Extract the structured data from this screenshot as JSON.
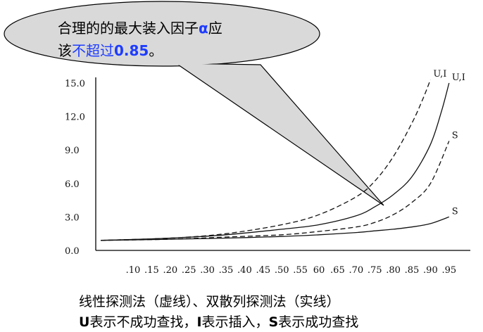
{
  "callout": {
    "line1_text": "合理的的最大装入因子",
    "line1_alpha": "α",
    "line1_tail": "应",
    "line2_prefix": "该",
    "line2_blue": "不超过",
    "line2_value": "0.85",
    "line2_end": "。"
  },
  "caption": {
    "line1": "线性探测法（虚线）、双散列探测法（实线）",
    "line2_parts": [
      {
        "text": "U",
        "bold": true
      },
      {
        "text": "表示不成功查找，",
        "bold": false
      },
      {
        "text": "I",
        "bold": true
      },
      {
        "text": "表示插入，",
        "bold": false
      },
      {
        "text": "S",
        "bold": true
      },
      {
        "text": "表示成功查找",
        "bold": false
      }
    ]
  },
  "chart_data": {
    "type": "line",
    "title": "",
    "xlabel": "",
    "ylabel": "",
    "xlim": [
      0.05,
      0.95
    ],
    "ylim": [
      0,
      15
    ],
    "y_ticks": [
      "0.0",
      "3.0",
      "6.0",
      "9.0",
      "12.0",
      "15.0"
    ],
    "x_ticks": [
      ".10",
      ".15",
      ".20",
      ".25",
      ".30",
      ".35",
      ".40",
      ".45",
      ".50",
      ".55",
      "60",
      ".65",
      ".70",
      ".75",
      ".80",
      ".85",
      ".90",
      ".95"
    ],
    "series": [
      {
        "name": "U,I",
        "style": "dashed",
        "x": [
          0.05,
          0.2,
          0.35,
          0.5,
          0.6,
          0.7,
          0.75,
          0.8,
          0.85,
          0.88,
          0.9
        ],
        "y": [
          0.9,
          1.1,
          1.5,
          2.3,
          3.2,
          4.8,
          6.2,
          8.4,
          11.4,
          13.6,
          15.3
        ]
      },
      {
        "name": "U,I",
        "style": "solid",
        "x": [
          0.05,
          0.2,
          0.35,
          0.5,
          0.6,
          0.7,
          0.75,
          0.8,
          0.85,
          0.9,
          0.93,
          0.95
        ],
        "y": [
          0.9,
          1.1,
          1.4,
          1.9,
          2.3,
          3.1,
          3.9,
          5.0,
          6.6,
          9.5,
          12.5,
          15.0
        ]
      },
      {
        "name": "S",
        "style": "dashed",
        "x": [
          0.05,
          0.2,
          0.35,
          0.5,
          0.6,
          0.7,
          0.75,
          0.8,
          0.85,
          0.9,
          0.95
        ],
        "y": [
          0.9,
          1.0,
          1.2,
          1.4,
          1.7,
          2.1,
          2.5,
          3.2,
          4.3,
          6.0,
          9.8
        ]
      },
      {
        "name": "S",
        "style": "solid",
        "x": [
          0.05,
          0.2,
          0.35,
          0.5,
          0.6,
          0.7,
          0.75,
          0.8,
          0.85,
          0.9,
          0.95
        ],
        "y": [
          0.9,
          1.0,
          1.1,
          1.25,
          1.4,
          1.6,
          1.75,
          1.9,
          2.1,
          2.4,
          3.0
        ]
      }
    ],
    "annotation_point": {
      "x": 0.75,
      "y": 3.9
    },
    "grid": false,
    "legend": "none"
  }
}
